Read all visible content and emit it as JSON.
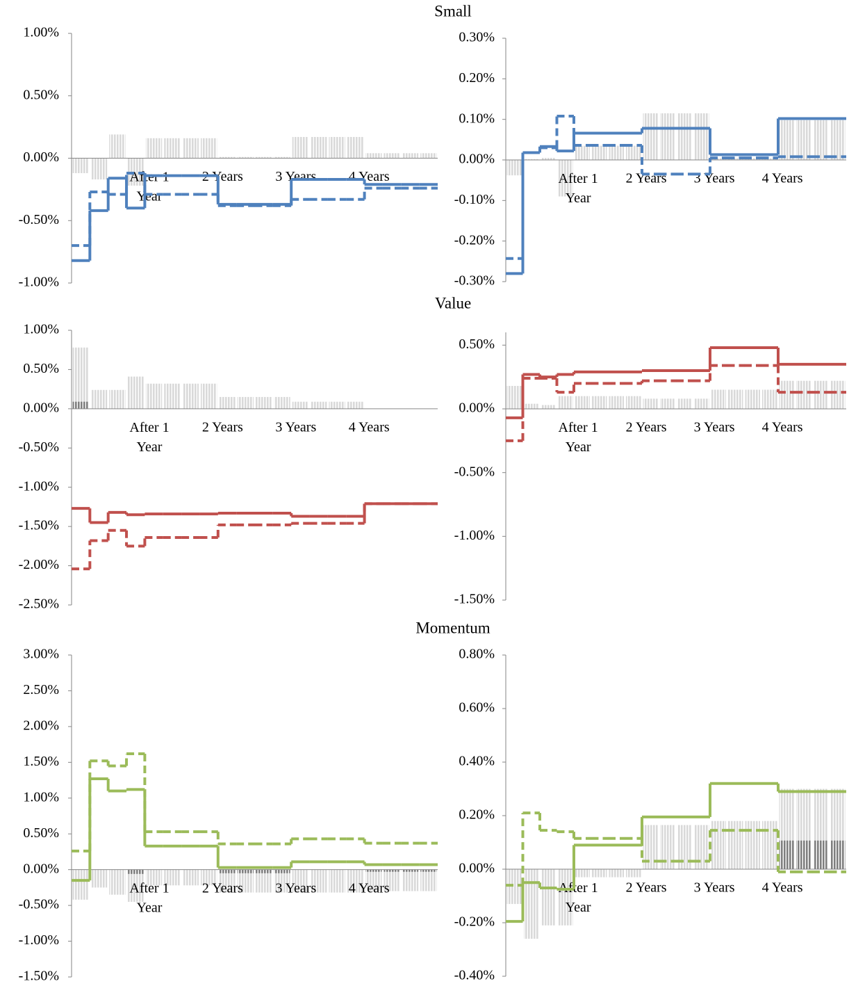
{
  "chart_data": [
    {
      "type": "line",
      "title": "Small",
      "categories": [
        null,
        null,
        null,
        null,
        "After 1 Year",
        null,
        null,
        null,
        "2 Years",
        null,
        null,
        null,
        "3 Years",
        null,
        null,
        null,
        "4 Years",
        null,
        null,
        null
      ],
      "series": [
        {
          "color": "#4f81bd",
          "style": "solid",
          "values": [
            -0.82,
            -0.42,
            -0.16,
            -0.4,
            -0.14,
            -0.14,
            -0.14,
            -0.14,
            -0.37,
            -0.37,
            -0.37,
            -0.37,
            -0.17,
            -0.17,
            -0.17,
            -0.17,
            -0.21,
            -0.21,
            -0.21,
            -0.21
          ]
        },
        {
          "color": "#4f81bd",
          "style": "dashed",
          "values": [
            -0.7,
            -0.27,
            -0.29,
            -0.12,
            -0.29,
            -0.29,
            -0.29,
            -0.29,
            -0.38,
            -0.38,
            -0.38,
            -0.38,
            -0.33,
            -0.33,
            -0.33,
            -0.33,
            -0.24,
            -0.24,
            -0.24,
            -0.24
          ]
        }
      ],
      "bars": [
        {
          "color": "#d9d9d9",
          "values": [
            -0.12,
            -0.17,
            0.19,
            -0.22,
            0.16,
            0.16,
            0.16,
            0.16,
            0.01,
            0.01,
            0.01,
            0.01,
            0.17,
            0.17,
            0.17,
            0.17,
            0.04,
            0.04,
            0.04,
            0.04
          ]
        }
      ],
      "ylim": [
        -1,
        1
      ],
      "yticks": [
        {
          "value": 1,
          "label": "1.00%"
        },
        {
          "value": 0.5,
          "label": "0.50%"
        },
        {
          "value": 0,
          "label": "0.00%"
        },
        {
          "value": -0.5,
          "label": "-0.50%"
        },
        {
          "value": -1,
          "label": "-1.00%"
        }
      ]
    },
    {
      "type": "line",
      "categories": [
        null,
        null,
        null,
        null,
        "After 1 Year",
        null,
        null,
        null,
        "2 Years",
        null,
        null,
        null,
        "3 Years",
        null,
        null,
        null,
        "4 Years",
        null,
        null,
        null
      ],
      "series": [
        {
          "color": "#4f81bd",
          "style": "solid",
          "values": [
            -0.28,
            0.018,
            0.033,
            0.022,
            0.066,
            0.066,
            0.066,
            0.066,
            0.078,
            0.078,
            0.078,
            0.078,
            0.013,
            0.013,
            0.013,
            0.013,
            0.102,
            0.102,
            0.102,
            0.102
          ]
        },
        {
          "color": "#4f81bd",
          "style": "dashed",
          "values": [
            -0.243,
            0.018,
            0.03,
            0.108,
            0.036,
            0.036,
            0.036,
            0.036,
            -0.035,
            -0.035,
            -0.035,
            -0.035,
            0.005,
            0.005,
            0.005,
            0.005,
            0.008,
            0.008,
            0.008,
            0.008
          ]
        }
      ],
      "bars": [
        {
          "color": "#d9d9d9",
          "values": [
            -0.038,
            0.002,
            0.005,
            -0.09,
            0.035,
            0.035,
            0.035,
            0.035,
            0.115,
            0.115,
            0.115,
            0.115,
            0.004,
            0.004,
            0.004,
            0.004,
            0.098,
            0.098,
            0.098,
            0.098
          ]
        }
      ],
      "ylim": [
        -0.3,
        0.3
      ],
      "yticks": [
        {
          "value": 0.3,
          "label": "0.30%"
        },
        {
          "value": 0.2,
          "label": "0.20%"
        },
        {
          "value": 0.1,
          "label": "0.10%"
        },
        {
          "value": 0,
          "label": "0.00%"
        },
        {
          "value": -0.1,
          "label": "-0.10%"
        },
        {
          "value": -0.2,
          "label": "-0.20%"
        },
        {
          "value": -0.3,
          "label": "-0.30%"
        }
      ]
    },
    {
      "type": "line",
      "title": "Value",
      "categories": [
        null,
        null,
        null,
        null,
        "After 1 Year",
        null,
        null,
        null,
        "2 Years",
        null,
        null,
        null,
        "3 Years",
        null,
        null,
        null,
        "4 Years",
        null,
        null,
        null
      ],
      "series": [
        {
          "color": "#c0504d",
          "style": "solid",
          "values": [
            -1.27,
            -1.45,
            -1.32,
            -1.35,
            -1.34,
            -1.34,
            -1.34,
            -1.34,
            -1.33,
            -1.33,
            -1.33,
            -1.33,
            -1.37,
            -1.37,
            -1.37,
            -1.37,
            -1.21,
            -1.21,
            -1.21,
            -1.21
          ]
        },
        {
          "color": "#c0504d",
          "style": "dashed",
          "values": [
            -2.04,
            -1.68,
            -1.55,
            -1.75,
            -1.64,
            -1.64,
            -1.64,
            -1.64,
            -1.48,
            -1.48,
            -1.48,
            -1.48,
            -1.46,
            -1.46,
            -1.46,
            -1.46,
            -1.21,
            -1.21,
            -1.21,
            -1.21
          ]
        }
      ],
      "bars": [
        {
          "color": "#d9d9d9",
          "values": [
            0.78,
            0.24,
            0.24,
            0.41,
            0.32,
            0.32,
            0.32,
            0.32,
            0.15,
            0.15,
            0.15,
            0.15,
            0.09,
            0.09,
            0.09,
            0.09,
            0,
            0,
            0,
            0
          ]
        },
        {
          "color": "#7f7f7f",
          "values": [
            0.09,
            0,
            0,
            0,
            0,
            0,
            0,
            0,
            0,
            0,
            0,
            0,
            0,
            0,
            0,
            0,
            0,
            0,
            0,
            0
          ]
        }
      ],
      "ylim": [
        -2.5,
        1
      ],
      "yticks": [
        {
          "value": 1,
          "label": "1.00%"
        },
        {
          "value": 0.5,
          "label": "0.50%"
        },
        {
          "value": 0,
          "label": "0.00%"
        },
        {
          "value": -0.5,
          "label": "-0.50%"
        },
        {
          "value": -1,
          "label": "-1.00%"
        },
        {
          "value": -1.5,
          "label": "-1.50%"
        },
        {
          "value": -2,
          "label": "-2.00%"
        },
        {
          "value": -2.5,
          "label": "-2.50%"
        }
      ]
    },
    {
      "type": "line",
      "categories": [
        null,
        null,
        null,
        null,
        "After 1 Year",
        null,
        null,
        null,
        "2 Years",
        null,
        null,
        null,
        "3 Years",
        null,
        null,
        null,
        "4 Years",
        null,
        null,
        null
      ],
      "series": [
        {
          "color": "#c0504d",
          "style": "solid",
          "values": [
            -0.07,
            0.27,
            0.25,
            0.27,
            0.29,
            0.29,
            0.29,
            0.29,
            0.3,
            0.3,
            0.3,
            0.3,
            0.48,
            0.48,
            0.48,
            0.48,
            0.35,
            0.35,
            0.35,
            0.35
          ]
        },
        {
          "color": "#c0504d",
          "style": "dashed",
          "values": [
            -0.25,
            0.24,
            0.24,
            0.13,
            0.2,
            0.2,
            0.2,
            0.2,
            0.22,
            0.22,
            0.22,
            0.22,
            0.34,
            0.34,
            0.34,
            0.34,
            0.13,
            0.13,
            0.13,
            0.13
          ]
        }
      ],
      "bars": [
        {
          "color": "#d9d9d9",
          "values": [
            0.18,
            0.04,
            0.03,
            0.1,
            0.1,
            0.1,
            0.1,
            0.1,
            0.08,
            0.08,
            0.08,
            0.08,
            0.15,
            0.15,
            0.15,
            0.15,
            0.22,
            0.22,
            0.22,
            0.22
          ]
        }
      ],
      "ylim": [
        -1.5,
        0.6
      ],
      "yticks": [
        {
          "value": 0.5,
          "label": "0.50%"
        },
        {
          "value": 0,
          "label": "0.00%"
        },
        {
          "value": -0.5,
          "label": "-0.50%"
        },
        {
          "value": -1,
          "label": "-1.00%"
        },
        {
          "value": -1.5,
          "label": "-1.50%"
        }
      ]
    },
    {
      "type": "line",
      "title": "Momentum",
      "categories": [
        null,
        null,
        null,
        null,
        "After 1 Year",
        null,
        null,
        null,
        "2 Years",
        null,
        null,
        null,
        "3 Years",
        null,
        null,
        null,
        "4 Years",
        null,
        null,
        null
      ],
      "series": [
        {
          "color": "#9bbb59",
          "style": "solid",
          "values": [
            -0.15,
            1.27,
            1.1,
            1.12,
            0.33,
            0.33,
            0.33,
            0.33,
            0.03,
            0.03,
            0.03,
            0.03,
            0.11,
            0.11,
            0.11,
            0.11,
            0.07,
            0.07,
            0.07,
            0.07
          ]
        },
        {
          "color": "#9bbb59",
          "style": "dashed",
          "values": [
            0.26,
            1.52,
            1.45,
            1.62,
            0.53,
            0.53,
            0.53,
            0.53,
            0.36,
            0.36,
            0.36,
            0.36,
            0.43,
            0.43,
            0.43,
            0.43,
            0.37,
            0.37,
            0.37,
            0.37
          ]
        }
      ],
      "bars": [
        {
          "color": "#d9d9d9",
          "values": [
            -0.42,
            -0.25,
            -0.35,
            -0.45,
            -0.22,
            -0.22,
            -0.22,
            -0.22,
            -0.32,
            -0.32,
            -0.32,
            -0.32,
            -0.32,
            -0.32,
            -0.32,
            -0.32,
            -0.3,
            -0.3,
            -0.3,
            -0.3
          ]
        },
        {
          "color": "#7f7f7f",
          "values": [
            0,
            0,
            0,
            -0.06,
            0,
            0,
            0,
            0,
            -0.05,
            -0.05,
            -0.05,
            -0.05,
            0,
            0,
            0,
            0,
            -0.03,
            -0.03,
            -0.03,
            -0.03
          ]
        }
      ],
      "ylim": [
        -1.5,
        3
      ],
      "yticks": [
        {
          "value": 3,
          "label": "3.00%"
        },
        {
          "value": 2.5,
          "label": "2.50%"
        },
        {
          "value": 2,
          "label": "2.00%"
        },
        {
          "value": 1.5,
          "label": "1.50%"
        },
        {
          "value": 1,
          "label": "1.00%"
        },
        {
          "value": 0.5,
          "label": "0.50%"
        },
        {
          "value": 0,
          "label": "0.00%"
        },
        {
          "value": -0.5,
          "label": "-0.50%"
        },
        {
          "value": -1,
          "label": "-1.00%"
        },
        {
          "value": -1.5,
          "label": "-1.50%"
        }
      ]
    },
    {
      "type": "line",
      "categories": [
        null,
        null,
        null,
        null,
        "After 1 Year",
        null,
        null,
        null,
        "2 Years",
        null,
        null,
        null,
        "3 Years",
        null,
        null,
        null,
        "4 Years",
        null,
        null,
        null
      ],
      "series": [
        {
          "color": "#9bbb59",
          "style": "solid",
          "values": [
            -0.195,
            -0.05,
            -0.07,
            -0.075,
            0.09,
            0.09,
            0.09,
            0.09,
            0.195,
            0.195,
            0.195,
            0.195,
            0.32,
            0.32,
            0.32,
            0.32,
            0.29,
            0.29,
            0.29,
            0.29
          ]
        },
        {
          "color": "#9bbb59",
          "style": "dashed",
          "values": [
            -0.06,
            0.21,
            0.145,
            0.14,
            0.115,
            0.115,
            0.115,
            0.115,
            0.03,
            0.03,
            0.03,
            0.03,
            0.145,
            0.145,
            0.145,
            0.145,
            -0.01,
            -0.01,
            -0.01,
            -0.01
          ]
        }
      ],
      "bars": [
        {
          "color": "#d9d9d9",
          "values": [
            -0.13,
            -0.26,
            -0.21,
            -0.21,
            -0.03,
            -0.03,
            -0.03,
            -0.03,
            0.165,
            0.165,
            0.165,
            0.165,
            0.18,
            0.18,
            0.18,
            0.18,
            0.3,
            0.3,
            0.3,
            0.3
          ]
        },
        {
          "color": "#7f7f7f",
          "values": [
            0,
            0,
            0,
            0,
            0,
            0,
            0,
            0,
            0,
            0,
            0,
            0,
            0,
            0,
            0,
            0,
            0.107,
            0.107,
            0.107,
            0.107
          ]
        }
      ],
      "ylim": [
        -0.4,
        0.8
      ],
      "yticks": [
        {
          "value": 0.8,
          "label": "0.80%"
        },
        {
          "value": 0.6,
          "label": "0.60%"
        },
        {
          "value": 0.4,
          "label": "0.40%"
        },
        {
          "value": 0.2,
          "label": "0.20%"
        },
        {
          "value": 0,
          "label": "0.00%"
        },
        {
          "value": -0.2,
          "label": "-0.20%"
        },
        {
          "value": -0.4,
          "label": "-0.40%"
        }
      ]
    }
  ]
}
